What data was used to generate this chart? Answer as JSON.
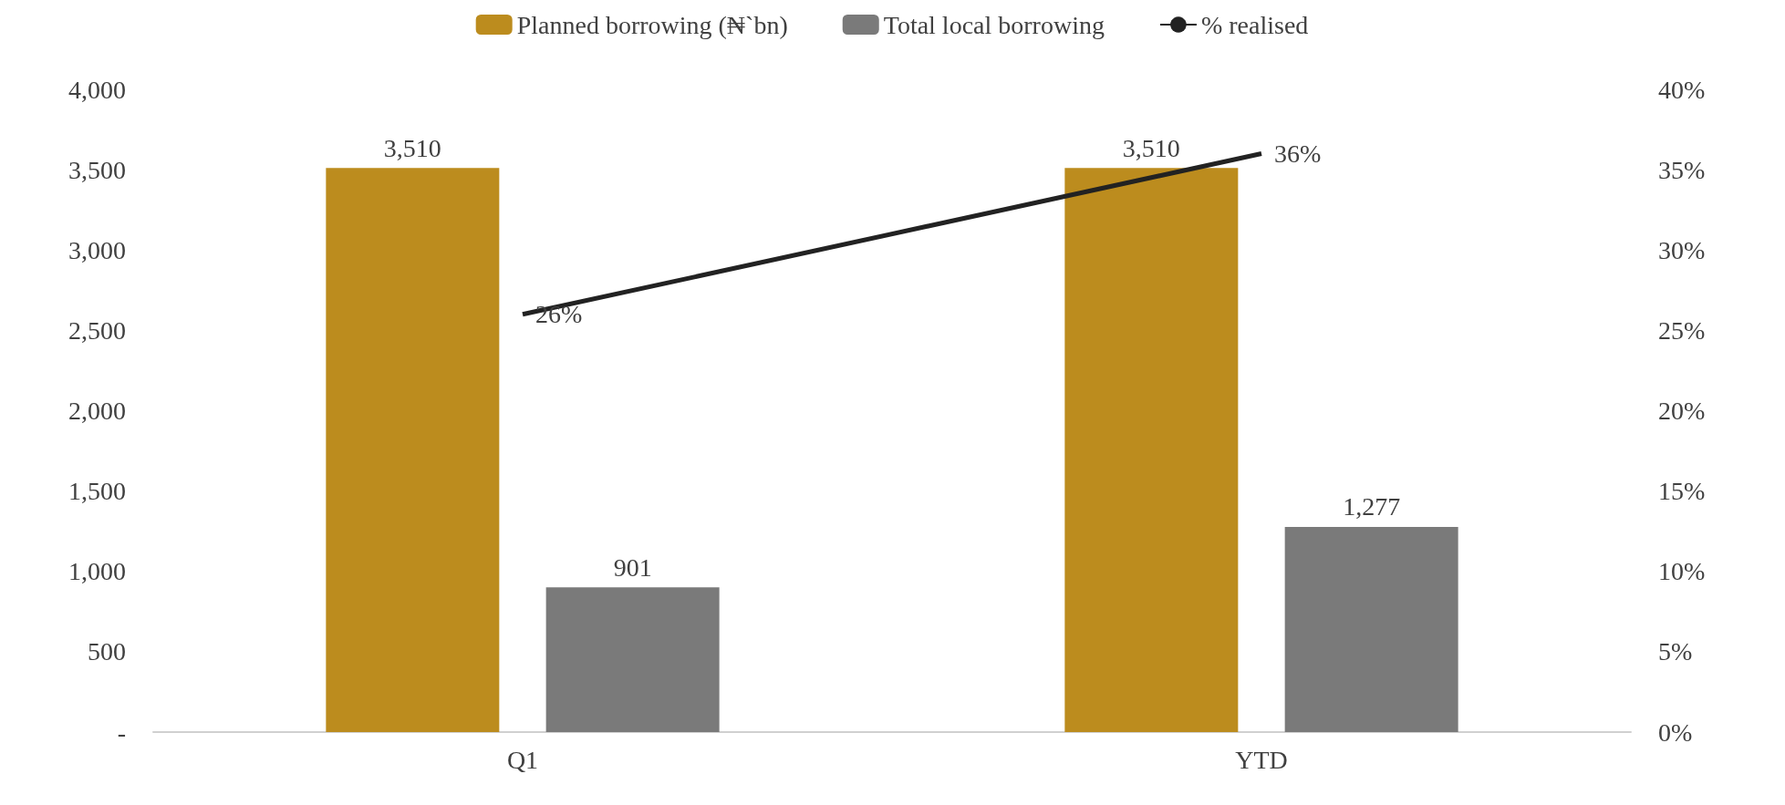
{
  "chart_data": {
    "type": "bar",
    "categories": [
      "Q1",
      "YTD"
    ],
    "series": [
      {
        "name": "Planned borrowing (₦`bn)",
        "color": "#bc8c1e",
        "values": [
          3510,
          3510
        ],
        "value_labels": [
          "3,510",
          "3,510"
        ]
      },
      {
        "name": "Total local borrowing",
        "color": "#7a7a7a",
        "values": [
          901,
          1277
        ],
        "value_labels": [
          "901",
          "1,277"
        ]
      },
      {
        "name": "% realised",
        "type": "line",
        "axis": "y2",
        "color": "#222222",
        "values": [
          26,
          36
        ],
        "value_labels": [
          "26%",
          "36%"
        ]
      }
    ],
    "ylim": [
      0,
      4000
    ],
    "yticks": [
      {
        "value": 0,
        "label": "-"
      },
      {
        "value": 500,
        "label": "500"
      },
      {
        "value": 1000,
        "label": "1,000"
      },
      {
        "value": 1500,
        "label": "1,500"
      },
      {
        "value": 2000,
        "label": "2,000"
      },
      {
        "value": 2500,
        "label": "2,500"
      },
      {
        "value": 3000,
        "label": "3,000"
      },
      {
        "value": 3500,
        "label": "3,500"
      },
      {
        "value": 4000,
        "label": "4,000"
      }
    ],
    "y2lim": [
      0,
      40
    ],
    "y2ticks": [
      {
        "value": 0,
        "label": "0%"
      },
      {
        "value": 5,
        "label": "5%"
      },
      {
        "value": 10,
        "label": "10%"
      },
      {
        "value": 15,
        "label": "15%"
      },
      {
        "value": 20,
        "label": "20%"
      },
      {
        "value": 25,
        "label": "25%"
      },
      {
        "value": 30,
        "label": "30%"
      },
      {
        "value": 35,
        "label": "35%"
      },
      {
        "value": 40,
        "label": "40%"
      }
    ],
    "legend": "top",
    "marker": "none"
  }
}
